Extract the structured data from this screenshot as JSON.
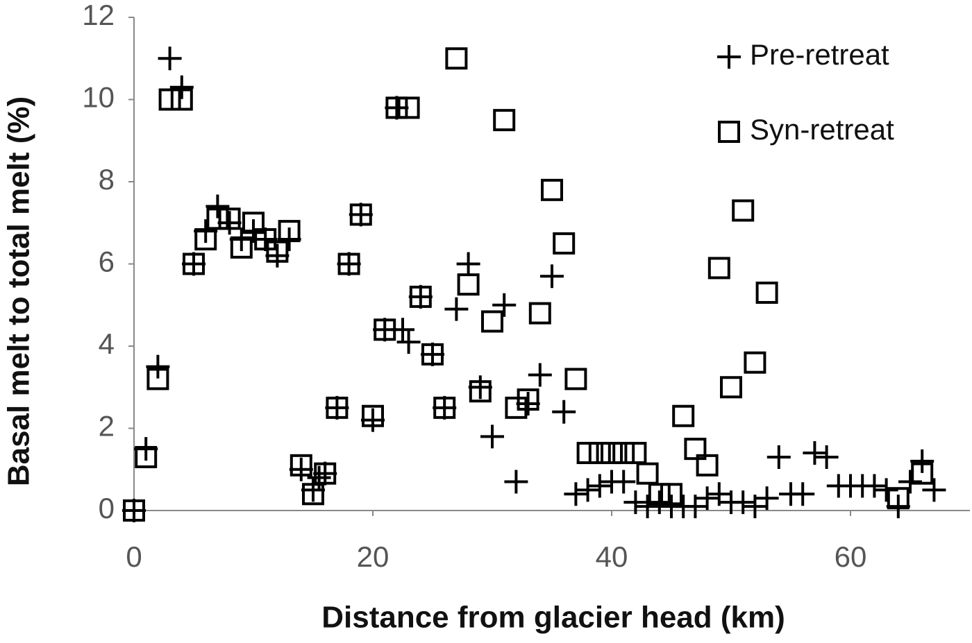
{
  "chart_data": {
    "type": "scatter",
    "x_label": "Distance from glacier head (km)",
    "y_label": "Basal melt to total melt (%)",
    "xlim": [
      0,
      70
    ],
    "ylim": [
      0,
      12
    ],
    "xticks": [
      0,
      20,
      40,
      60
    ],
    "yticks": [
      0,
      2,
      4,
      6,
      8,
      10,
      12
    ],
    "grid": false,
    "legend": "upper right",
    "series": [
      {
        "name": "Pre-retreat",
        "marker": "plus",
        "color": "#000000",
        "x": [
          0,
          1,
          2,
          3,
          4,
          5,
          6,
          7,
          8,
          9,
          10,
          11,
          12,
          13,
          14,
          15,
          15.5,
          16,
          17,
          18,
          19,
          20,
          21,
          22,
          22.5,
          23,
          24,
          25,
          26,
          27,
          28,
          29,
          30,
          31,
          32,
          33,
          34,
          35,
          36,
          37,
          38,
          39,
          40,
          41,
          42,
          43,
          44,
          45,
          46,
          47,
          48,
          49,
          50,
          51,
          52,
          53,
          54,
          55,
          56,
          57,
          58,
          59,
          60,
          61,
          62,
          63,
          64,
          65,
          66,
          67
        ],
        "values": [
          0,
          1.5,
          3.5,
          11,
          10.3,
          6,
          6.8,
          7.4,
          7,
          6.6,
          6.8,
          6.6,
          6.2,
          6.6,
          1,
          0.5,
          0.8,
          0.9,
          2.5,
          6,
          7.2,
          2.2,
          4.4,
          9.8,
          4.4,
          4.1,
          5.2,
          3.8,
          2.5,
          4.9,
          6,
          3,
          1.8,
          5,
          0.7,
          2.6,
          3.3,
          5.7,
          2.4,
          0.4,
          0.5,
          0.6,
          0.7,
          0.7,
          0.2,
          0.1,
          0.2,
          0.1,
          0.1,
          0.1,
          0.3,
          0.4,
          0.2,
          0.2,
          0.1,
          0.3,
          1.3,
          0.4,
          0.4,
          1.4,
          1.3,
          0.6,
          0.6,
          0.6,
          0.6,
          0.5,
          0.1,
          0.7,
          1.2,
          0.5
        ]
      },
      {
        "name": "Syn-retreat",
        "marker": "square",
        "color": "#000000",
        "x": [
          0,
          1,
          2,
          3,
          4,
          5,
          6,
          7,
          8,
          9,
          10,
          11,
          12,
          13,
          14,
          15,
          16,
          17,
          18,
          19,
          20,
          21,
          22,
          23,
          24,
          25,
          26,
          27,
          28,
          29,
          30,
          31,
          32,
          33,
          34,
          35,
          36,
          37,
          38,
          39,
          40,
          41,
          42,
          43,
          44,
          45,
          46,
          47,
          48,
          49,
          50,
          51,
          52,
          53,
          64,
          66
        ],
        "values": [
          0,
          1.3,
          3.2,
          10,
          10,
          6,
          6.6,
          7.1,
          7.1,
          6.4,
          7,
          6.6,
          6.3,
          6.8,
          1.1,
          0.4,
          0.9,
          2.5,
          6,
          7.2,
          2.3,
          4.4,
          9.8,
          9.8,
          5.2,
          3.8,
          2.5,
          11,
          5.5,
          2.9,
          4.6,
          9.5,
          2.5,
          2.7,
          4.8,
          7.8,
          6.5,
          3.2,
          1.4,
          1.4,
          1.4,
          1.4,
          1.4,
          0.9,
          0.4,
          0.4,
          2.3,
          1.5,
          1.1,
          5.9,
          3,
          7.3,
          3.6,
          5.3,
          0.3,
          0.9
        ]
      }
    ]
  }
}
